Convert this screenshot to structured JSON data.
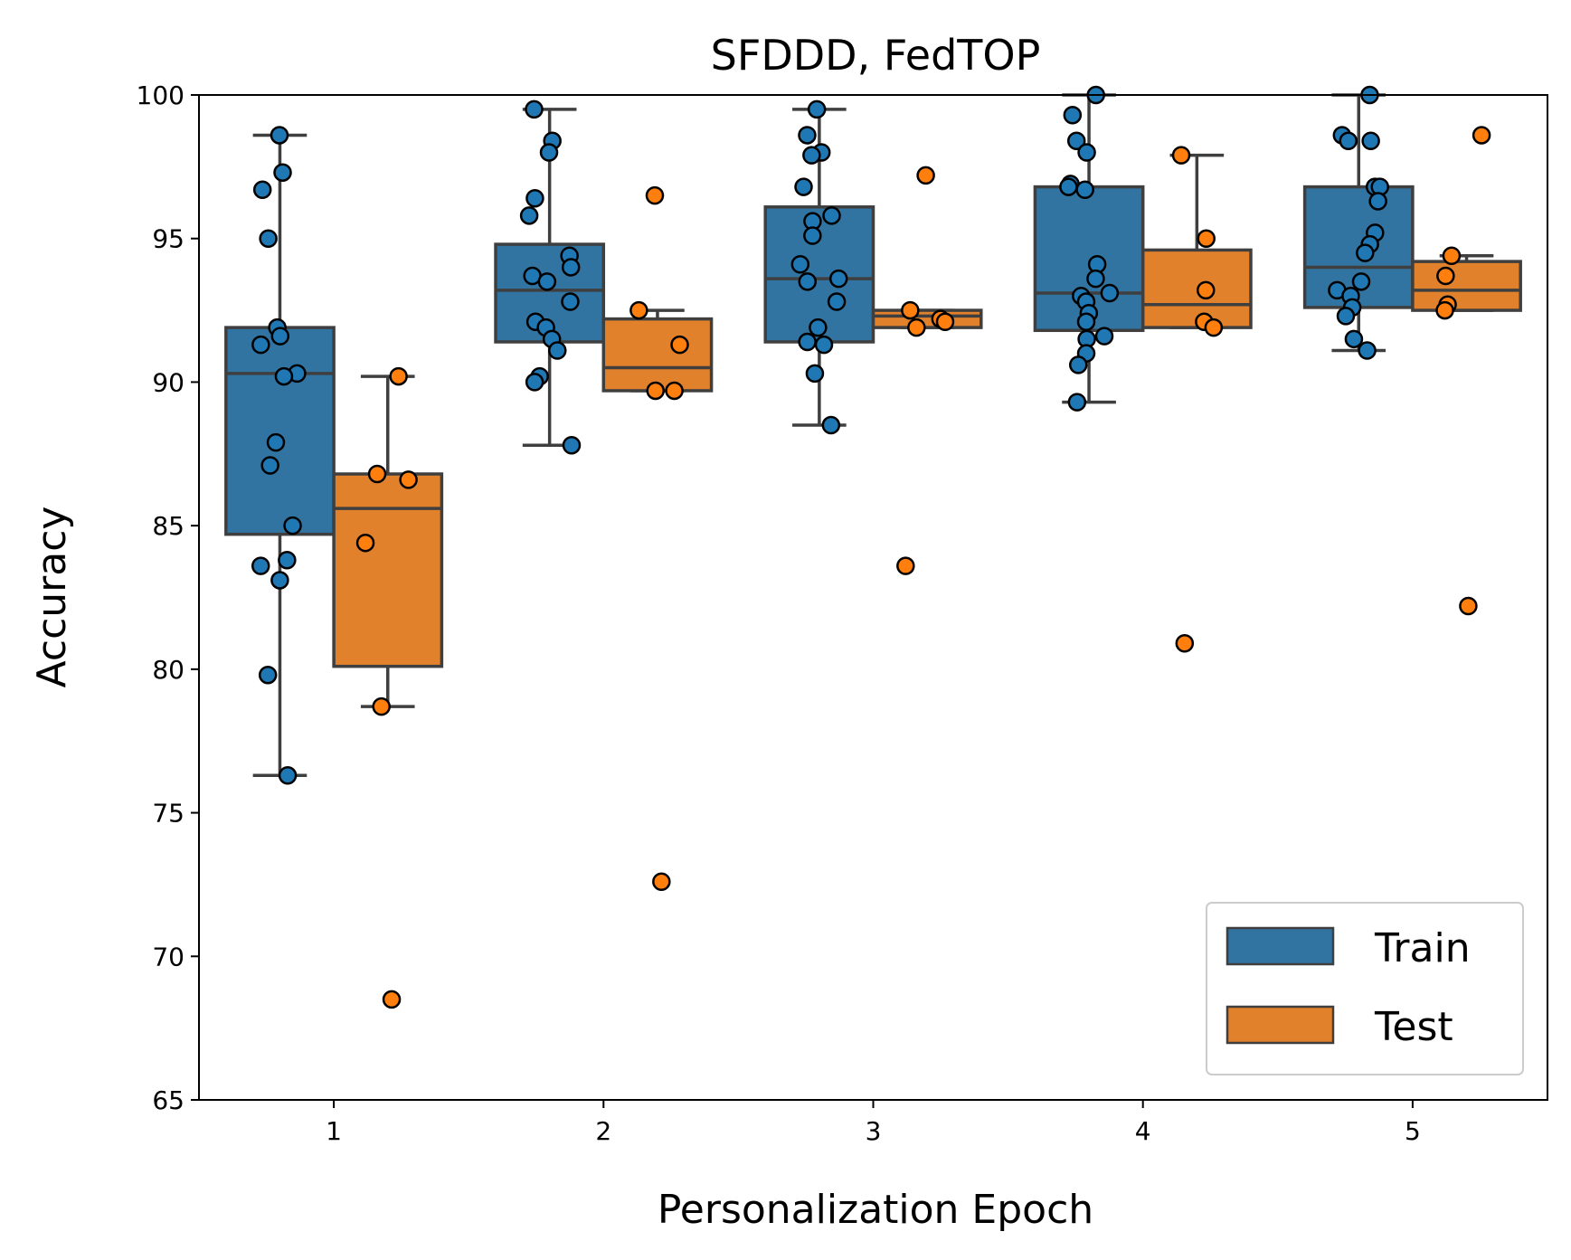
{
  "chart_data": {
    "type": "box",
    "title": "SFDDD, FedTOP",
    "xlabel": "Personalization Epoch",
    "ylabel": "Accuracy",
    "ylim": [
      65,
      100
    ],
    "yticks": [
      65,
      70,
      75,
      80,
      85,
      90,
      95,
      100
    ],
    "categories": [
      "1",
      "2",
      "3",
      "4",
      "5"
    ],
    "legend": {
      "position": "lower-right",
      "entries": [
        "Train",
        "Test"
      ]
    },
    "colors": {
      "Train": "#3274a1",
      "Test": "#e1812c",
      "line": "#3f3f3f",
      "Train_point": "#1f77b4",
      "Test_point": "#ff7f0e"
    },
    "series": [
      {
        "name": "Train",
        "boxes": [
          {
            "q1": 84.7,
            "median": 90.3,
            "q3": 91.9,
            "whisker_low": 76.3,
            "whisker_high": 98.6
          },
          {
            "q1": 91.4,
            "median": 93.2,
            "q3": 94.8,
            "whisker_low": 87.8,
            "whisker_high": 99.5
          },
          {
            "q1": 91.4,
            "median": 93.6,
            "q3": 96.1,
            "whisker_low": 88.5,
            "whisker_high": 99.5
          },
          {
            "q1": 91.8,
            "median": 93.1,
            "q3": 96.8,
            "whisker_low": 89.3,
            "whisker_high": 100.0
          },
          {
            "q1": 92.6,
            "median": 94.0,
            "q3": 96.8,
            "whisker_low": 91.1,
            "whisker_high": 100.0
          }
        ],
        "points": [
          [
            98.6,
            97.3,
            96.7,
            95.0,
            91.9,
            91.6,
            91.3,
            90.3,
            90.2,
            87.9,
            87.1,
            85.0,
            83.8,
            83.6,
            83.1,
            79.8,
            76.3
          ],
          [
            99.5,
            98.4,
            98.0,
            96.4,
            95.8,
            94.4,
            94.0,
            93.7,
            93.5,
            92.8,
            92.1,
            91.9,
            91.5,
            91.1,
            90.2,
            90.0,
            87.8
          ],
          [
            99.5,
            98.6,
            98.0,
            97.9,
            96.8,
            95.8,
            95.6,
            95.1,
            94.1,
            93.6,
            93.5,
            92.8,
            91.9,
            91.4,
            91.3,
            90.3,
            88.5
          ],
          [
            100.0,
            99.3,
            98.4,
            98.0,
            96.9,
            96.8,
            96.7,
            94.1,
            93.6,
            93.1,
            93.0,
            92.8,
            92.4,
            92.1,
            91.6,
            91.5,
            91.0,
            90.6,
            89.3
          ],
          [
            100.0,
            98.6,
            98.4,
            98.4,
            96.8,
            96.8,
            96.3,
            95.2,
            94.8,
            94.5,
            93.5,
            93.2,
            93.0,
            92.6,
            92.3,
            91.5,
            91.1
          ]
        ]
      },
      {
        "name": "Test",
        "boxes": [
          {
            "q1": 80.1,
            "median": 85.6,
            "q3": 86.8,
            "whisker_low": 78.7,
            "whisker_high": 90.2
          },
          {
            "q1": 89.7,
            "median": 90.5,
            "q3": 92.2,
            "whisker_low": 89.7,
            "whisker_high": 92.5
          },
          {
            "q1": 91.9,
            "median": 92.3,
            "q3": 92.5,
            "whisker_low": 91.9,
            "whisker_high": 92.5
          },
          {
            "q1": 91.9,
            "median": 92.7,
            "q3": 94.6,
            "whisker_low": 91.9,
            "whisker_high": 97.9
          },
          {
            "q1": 92.5,
            "median": 93.2,
            "q3": 94.2,
            "whisker_low": 92.5,
            "whisker_high": 94.4
          }
        ],
        "points": [
          [
            90.2,
            86.8,
            86.6,
            84.4,
            78.7,
            68.5
          ],
          [
            96.5,
            92.5,
            91.3,
            89.7,
            89.7,
            72.6
          ],
          [
            97.2,
            92.5,
            92.2,
            92.1,
            91.9,
            83.6
          ],
          [
            97.9,
            95.0,
            93.2,
            92.1,
            91.9,
            80.9
          ],
          [
            98.6,
            94.4,
            93.7,
            92.7,
            92.5,
            82.2
          ]
        ]
      }
    ]
  }
}
